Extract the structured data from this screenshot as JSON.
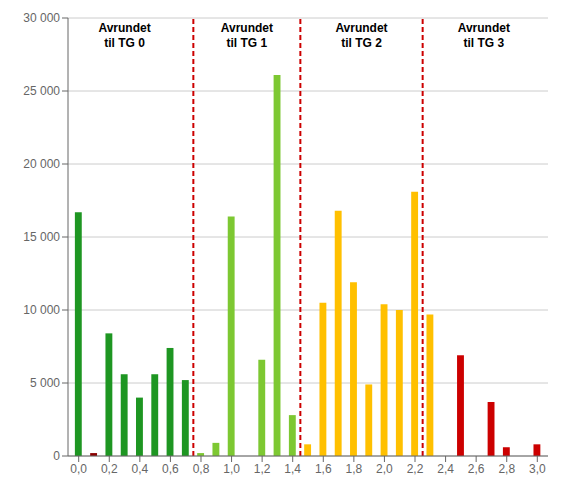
{
  "chart_data": {
    "type": "bar",
    "x": [
      0.0,
      0.1,
      0.2,
      0.3,
      0.4,
      0.5,
      0.6,
      0.7,
      0.8,
      0.9,
      1.0,
      1.1,
      1.2,
      1.3,
      1.4,
      1.5,
      1.6,
      1.7,
      1.8,
      1.9,
      2.0,
      2.1,
      2.2,
      2.3,
      2.4,
      2.5,
      2.6,
      2.7,
      2.8,
      2.9,
      3.0
    ],
    "values": [
      16700,
      200,
      8400,
      5600,
      4000,
      5600,
      7400,
      5200,
      200,
      900,
      16400,
      0,
      6600,
      26100,
      2800,
      800,
      10500,
      16800,
      11900,
      4900,
      10400,
      10000,
      18100,
      9700,
      0,
      6900,
      0,
      3700,
      600,
      0,
      800
    ],
    "colors": [
      "#1e9622",
      "#8b0000",
      "#1e9622",
      "#1e9622",
      "#1e9622",
      "#1e9622",
      "#1e9622",
      "#1e9622",
      "#7dc832",
      "#7dc832",
      "#7dc832",
      "#7dc832",
      "#7dc832",
      "#7dc832",
      "#7dc832",
      "#ffc000",
      "#ffc000",
      "#ffc000",
      "#ffc000",
      "#ffc000",
      "#ffc000",
      "#ffc000",
      "#ffc000",
      "#ffc000",
      "#cc0000",
      "#cc0000",
      "#cc0000",
      "#cc0000",
      "#cc0000",
      "#cc0000",
      "#cc0000"
    ],
    "vlines": [
      {
        "value": 0.75,
        "color": "#cc0000"
      },
      {
        "value": 1.45,
        "color": "#cc0000"
      },
      {
        "value": 2.25,
        "color": "#cc0000"
      }
    ],
    "annotations": [
      {
        "text": "Avrundet\ntil TG 0",
        "x": 0.3,
        "y": 29800
      },
      {
        "text": "Avrundet\ntil TG 1",
        "x": 1.1,
        "y": 29800
      },
      {
        "text": "Avrundet\ntil TG 2",
        "x": 1.85,
        "y": 29800
      },
      {
        "text": "Avrundet\ntil TG 3",
        "x": 2.65,
        "y": 29800
      }
    ],
    "xlim": [
      -0.07,
      3.07
    ],
    "xticks": [
      {
        "value": 0.0,
        "label": "0,0"
      },
      {
        "value": 0.2,
        "label": "0,2"
      },
      {
        "value": 0.4,
        "label": "0,4"
      },
      {
        "value": 0.6,
        "label": "0,6"
      },
      {
        "value": 0.8,
        "label": "0,8"
      },
      {
        "value": 1.0,
        "label": "1,0"
      },
      {
        "value": 1.2,
        "label": "1,2"
      },
      {
        "value": 1.4,
        "label": "1,4"
      },
      {
        "value": 1.6,
        "label": "1,6"
      },
      {
        "value": 1.8,
        "label": "1,8"
      },
      {
        "value": 2.0,
        "label": "2,0"
      },
      {
        "value": 2.2,
        "label": "2,2"
      },
      {
        "value": 2.4,
        "label": "2,4"
      },
      {
        "value": 2.6,
        "label": "2,6"
      },
      {
        "value": 2.8,
        "label": "2,8"
      },
      {
        "value": 3.0,
        "label": "3,0"
      }
    ],
    "ylim": [
      0,
      30000
    ],
    "yticks": [
      0,
      {
        "value": 5000,
        "label": "5 000"
      },
      {
        "value": 10000,
        "label": "10 000"
      },
      {
        "value": 15000,
        "label": "15 000"
      },
      {
        "value": 20000,
        "label": "20 000"
      },
      {
        "value": 25000,
        "label": "25 000"
      },
      {
        "value": 30000,
        "label": "30 000"
      }
    ],
    "grid": "y"
  }
}
